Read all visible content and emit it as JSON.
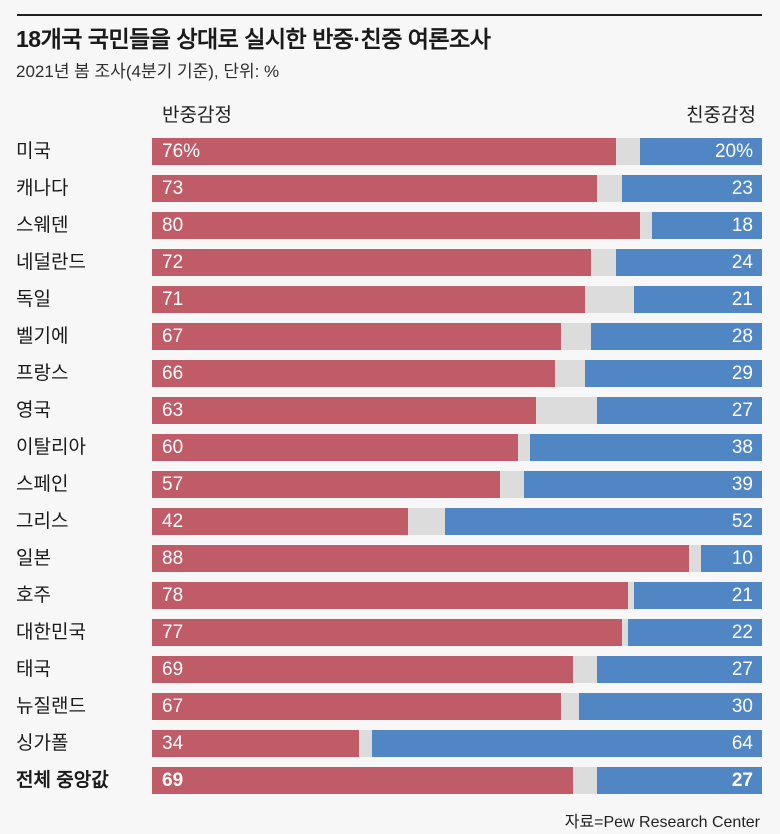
{
  "title": "18개국 국민들을 상대로 실시한 반중·친중 여론조사",
  "subtitle": "2021년 봄 조사(4분기 기준), 단위: %",
  "legend": {
    "left": "반중감정",
    "right": "친중감정"
  },
  "source": "자료=Pew Research Center",
  "colors": {
    "anti": "#c05c68",
    "pro": "#4f86c3",
    "gap": "#dcdcdc",
    "background": "#f7f7f7"
  },
  "chart_data": {
    "type": "bar",
    "orientation": "horizontal",
    "stacked": true,
    "unit": "%",
    "xlim": [
      0,
      100
    ],
    "legend_position": "top",
    "title": "18개국 국민들을 상대로 실시한 반중·친중 여론조사",
    "subtitle": "2021년 봄 조사(4분기 기준), 단위: %",
    "categories": [
      "미국",
      "캐나다",
      "스웨덴",
      "네덜란드",
      "독일",
      "벨기에",
      "프랑스",
      "영국",
      "이탈리아",
      "스페인",
      "그리스",
      "일본",
      "호주",
      "대한민국",
      "태국",
      "뉴질랜드",
      "싱가폴",
      "전체 중앙값"
    ],
    "series": [
      {
        "name": "반중감정",
        "color": "#c05c68",
        "values": [
          76,
          73,
          80,
          72,
          71,
          67,
          66,
          63,
          60,
          57,
          42,
          88,
          78,
          77,
          69,
          67,
          34,
          69
        ]
      },
      {
        "name": "친중감정",
        "color": "#4f86c3",
        "values": [
          20,
          23,
          18,
          24,
          21,
          28,
          29,
          27,
          38,
          39,
          52,
          10,
          21,
          22,
          27,
          30,
          64,
          27
        ]
      }
    ],
    "rows": [
      {
        "label": "미국",
        "anti": 76,
        "pro": 20,
        "anti_label": "76%",
        "pro_label": "20%",
        "bold": false
      },
      {
        "label": "캐나다",
        "anti": 73,
        "pro": 23,
        "anti_label": "73",
        "pro_label": "23",
        "bold": false
      },
      {
        "label": "스웨덴",
        "anti": 80,
        "pro": 18,
        "anti_label": "80",
        "pro_label": "18",
        "bold": false
      },
      {
        "label": "네덜란드",
        "anti": 72,
        "pro": 24,
        "anti_label": "72",
        "pro_label": "24",
        "bold": false
      },
      {
        "label": "독일",
        "anti": 71,
        "pro": 21,
        "anti_label": "71",
        "pro_label": "21",
        "bold": false
      },
      {
        "label": "벨기에",
        "anti": 67,
        "pro": 28,
        "anti_label": "67",
        "pro_label": "28",
        "bold": false
      },
      {
        "label": "프랑스",
        "anti": 66,
        "pro": 29,
        "anti_label": "66",
        "pro_label": "29",
        "bold": false
      },
      {
        "label": "영국",
        "anti": 63,
        "pro": 27,
        "anti_label": "63",
        "pro_label": "27",
        "bold": false
      },
      {
        "label": "이탈리아",
        "anti": 60,
        "pro": 38,
        "anti_label": "60",
        "pro_label": "38",
        "bold": false
      },
      {
        "label": "스페인",
        "anti": 57,
        "pro": 39,
        "anti_label": "57",
        "pro_label": "39",
        "bold": false
      },
      {
        "label": "그리스",
        "anti": 42,
        "pro": 52,
        "anti_label": "42",
        "pro_label": "52",
        "bold": false
      },
      {
        "label": "일본",
        "anti": 88,
        "pro": 10,
        "anti_label": "88",
        "pro_label": "10",
        "bold": false
      },
      {
        "label": "호주",
        "anti": 78,
        "pro": 21,
        "anti_label": "78",
        "pro_label": "21",
        "bold": false
      },
      {
        "label": "대한민국",
        "anti": 77,
        "pro": 22,
        "anti_label": "77",
        "pro_label": "22",
        "bold": false
      },
      {
        "label": "태국",
        "anti": 69,
        "pro": 27,
        "anti_label": "69",
        "pro_label": "27",
        "bold": false
      },
      {
        "label": "뉴질랜드",
        "anti": 67,
        "pro": 30,
        "anti_label": "67",
        "pro_label": "30",
        "bold": false
      },
      {
        "label": "싱가폴",
        "anti": 34,
        "pro": 64,
        "anti_label": "34",
        "pro_label": "64",
        "bold": false
      },
      {
        "label": "전체 중앙값",
        "anti": 69,
        "pro": 27,
        "anti_label": "69",
        "pro_label": "27",
        "bold": true
      }
    ]
  }
}
